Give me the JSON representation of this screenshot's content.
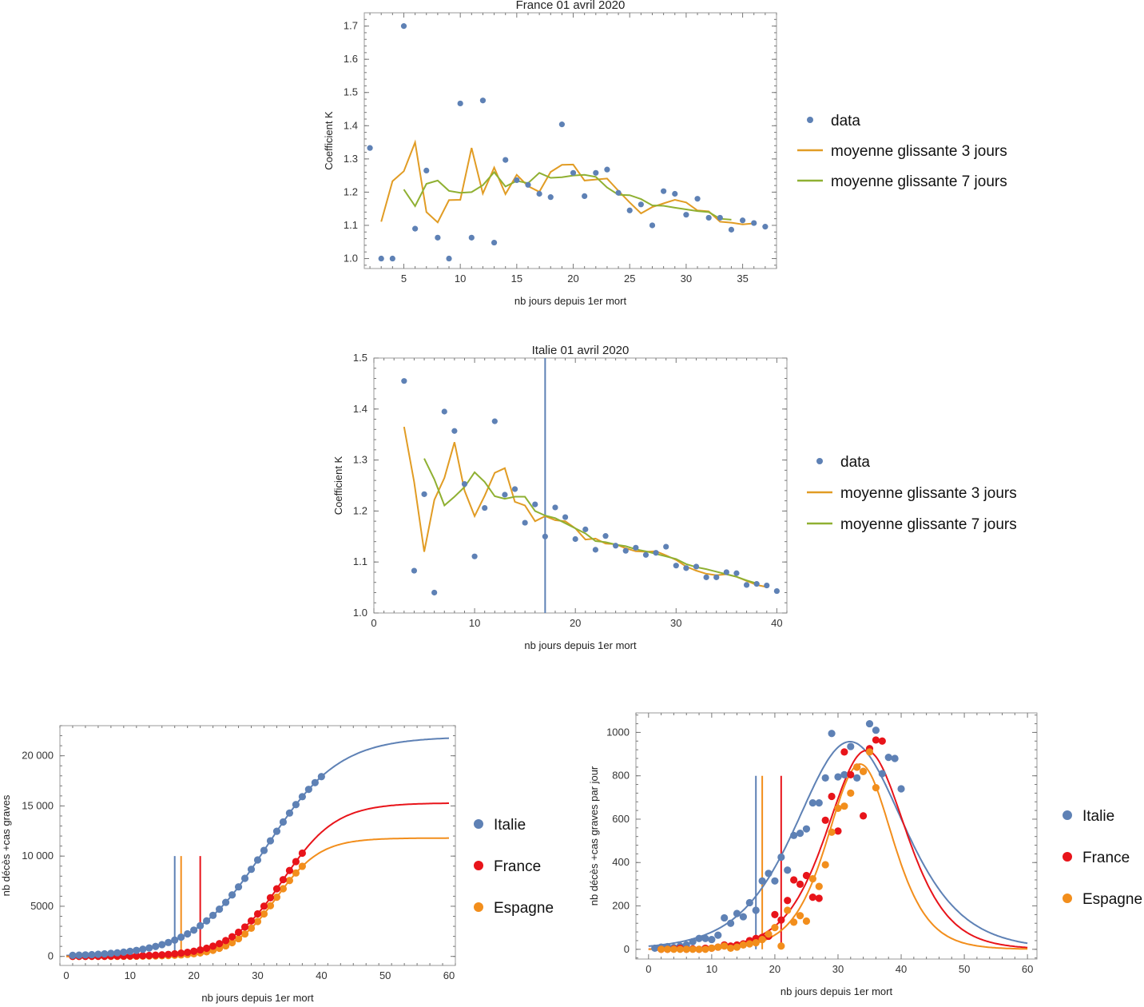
{
  "chart_data": [
    {
      "type": "scatter",
      "title": "France 01 avril 2020",
      "xlabel": "nb jours depuis 1er mort",
      "ylabel": "Coefficient K",
      "xlim": [
        1.5,
        38
      ],
      "ylim": [
        0.97,
        1.74
      ],
      "xticks": [
        5,
        10,
        15,
        20,
        25,
        30,
        35
      ],
      "yticks": [
        1.0,
        1.1,
        1.2,
        1.3,
        1.4,
        1.5,
        1.6,
        1.7
      ],
      "legend_position": "right",
      "series": [
        {
          "name": "data",
          "kind": "points",
          "color": "#5e81b5",
          "x": [
            2,
            3,
            4,
            5,
            6,
            7,
            8,
            9,
            10,
            11,
            12,
            13,
            14,
            15,
            16,
            17,
            18,
            19,
            20,
            21,
            22,
            23,
            24,
            25,
            26,
            27,
            28,
            29,
            30,
            31,
            32,
            33,
            34,
            35,
            36,
            37
          ],
          "y": [
            1.333,
            1.0,
            1.0,
            1.7,
            1.09,
            1.265,
            1.063,
            1.0,
            1.467,
            1.063,
            1.476,
            1.048,
            1.297,
            1.236,
            1.222,
            1.195,
            1.185,
            1.404,
            1.258,
            1.188,
            1.258,
            1.268,
            1.198,
            1.145,
            1.163,
            1.1,
            1.203,
            1.195,
            1.132,
            1.18,
            1.123,
            1.123,
            1.087,
            1.115,
            1.107,
            1.096
          ]
        },
        {
          "name": "moyenne glissante 3 jours",
          "kind": "line",
          "color": "#e19c24",
          "x": [
            3,
            4,
            5,
            6,
            7,
            8,
            9,
            10,
            11,
            12,
            13,
            14,
            15,
            16,
            17,
            18,
            19,
            20,
            21,
            22,
            23,
            24,
            25,
            26,
            27,
            28,
            29,
            30,
            31,
            32,
            33,
            34,
            35,
            36
          ],
          "y": [
            1.111,
            1.233,
            1.263,
            1.35,
            1.14,
            1.109,
            1.176,
            1.177,
            1.333,
            1.196,
            1.274,
            1.194,
            1.252,
            1.218,
            1.201,
            1.261,
            1.282,
            1.283,
            1.235,
            1.238,
            1.241,
            1.204,
            1.169,
            1.136,
            1.155,
            1.166,
            1.177,
            1.169,
            1.145,
            1.142,
            1.111,
            1.108,
            1.103,
            1.106
          ]
        },
        {
          "name": "moyenne glissante 7 jours",
          "kind": "line",
          "color": "#8fb032",
          "x": [
            5,
            6,
            7,
            8,
            9,
            10,
            11,
            12,
            13,
            14,
            15,
            16,
            17,
            18,
            19,
            20,
            21,
            22,
            23,
            24,
            25,
            26,
            27,
            28,
            29,
            30,
            31,
            32,
            33,
            34
          ],
          "y": [
            1.208,
            1.158,
            1.225,
            1.235,
            1.204,
            1.198,
            1.2,
            1.221,
            1.26,
            1.217,
            1.234,
            1.227,
            1.258,
            1.243,
            1.245,
            1.25,
            1.252,
            1.246,
            1.214,
            1.192,
            1.191,
            1.179,
            1.16,
            1.159,
            1.153,
            1.148,
            1.143,
            1.14,
            1.12,
            1.117
          ]
        }
      ]
    },
    {
      "type": "scatter",
      "title": "Italie 01 avril 2020",
      "xlabel": "nb jours depuis 1er mort",
      "ylabel": "Coefficient K",
      "xlim": [
        0,
        41
      ],
      "ylim": [
        1.0,
        1.5
      ],
      "xticks": [
        0,
        10,
        20,
        30,
        40
      ],
      "yticks": [
        1.0,
        1.1,
        1.2,
        1.3,
        1.4,
        1.5
      ],
      "vline_x": 17,
      "legend_position": "right",
      "series": [
        {
          "name": "data",
          "kind": "points",
          "color": "#5e81b5",
          "x": [
            3,
            4,
            5,
            6,
            7,
            8,
            9,
            10,
            11,
            12,
            13,
            14,
            15,
            16,
            17,
            18,
            19,
            20,
            21,
            22,
            23,
            24,
            25,
            26,
            27,
            28,
            29,
            30,
            31,
            32,
            33,
            34,
            35,
            36,
            37,
            38,
            39,
            40
          ],
          "y": [
            1.455,
            1.083,
            1.233,
            1.04,
            1.395,
            1.357,
            1.253,
            1.111,
            1.206,
            1.376,
            1.232,
            1.243,
            1.177,
            1.213,
            1.15,
            1.207,
            1.188,
            1.145,
            1.164,
            1.124,
            1.151,
            1.132,
            1.122,
            1.128,
            1.114,
            1.118,
            1.13,
            1.093,
            1.088,
            1.091,
            1.07,
            1.07,
            1.08,
            1.078,
            1.055,
            1.057,
            1.054,
            1.043
          ]
        },
        {
          "name": "moyenne glissante 3 jours",
          "kind": "line",
          "color": "#e19c24",
          "x": [
            3,
            4,
            5,
            6,
            7,
            8,
            9,
            10,
            11,
            12,
            13,
            14,
            15,
            16,
            17,
            18,
            19,
            20,
            21,
            22,
            23,
            24,
            25,
            26,
            27,
            28,
            29,
            30,
            31,
            32,
            33,
            34,
            35,
            36,
            37,
            38,
            39
          ],
          "y": [
            1.365,
            1.257,
            1.12,
            1.222,
            1.265,
            1.335,
            1.24,
            1.19,
            1.23,
            1.275,
            1.284,
            1.218,
            1.211,
            1.18,
            1.19,
            1.182,
            1.18,
            1.166,
            1.144,
            1.146,
            1.136,
            1.135,
            1.127,
            1.121,
            1.12,
            1.121,
            1.113,
            1.104,
            1.091,
            1.083,
            1.077,
            1.074,
            1.076,
            1.071,
            1.063,
            1.055,
            1.051
          ]
        },
        {
          "name": "moyenne glissante 7 jours",
          "kind": "line",
          "color": "#8fb032",
          "x": [
            5,
            6,
            7,
            8,
            9,
            10,
            11,
            12,
            13,
            14,
            15,
            16,
            17,
            18,
            19,
            20,
            21,
            22,
            23,
            24,
            25,
            26,
            27,
            28,
            29,
            30,
            31,
            32,
            33,
            34,
            35,
            36,
            37,
            38
          ],
          "y": [
            1.303,
            1.262,
            1.211,
            1.228,
            1.247,
            1.276,
            1.257,
            1.229,
            1.224,
            1.228,
            1.228,
            1.2,
            1.191,
            1.186,
            1.176,
            1.166,
            1.156,
            1.141,
            1.139,
            1.134,
            1.131,
            1.125,
            1.121,
            1.116,
            1.111,
            1.106,
            1.096,
            1.09,
            1.086,
            1.081,
            1.076,
            1.071,
            1.064,
            1.058
          ]
        }
      ]
    },
    {
      "type": "scatter",
      "title": "",
      "xlabel": "nb jours depuis 1er mort",
      "ylabel": "nb décès +cas graves",
      "xlim": [
        -1,
        61
      ],
      "ylim": [
        -900,
        23000
      ],
      "xticks": [
        0,
        10,
        20,
        30,
        40,
        50,
        60
      ],
      "ytick_values": [
        0,
        5000,
        10000,
        15000,
        20000
      ],
      "ytick_labels": [
        "0",
        "5000",
        "10 000",
        "15 000",
        "20 000"
      ],
      "vlines": [
        {
          "x": 17,
          "y0": 0,
          "y1": 10000,
          "color": "#5e81b5"
        },
        {
          "x": 18,
          "y0": 0,
          "y1": 10000,
          "color": "#f28e1c"
        },
        {
          "x": 21,
          "y0": 0,
          "y1": 10000,
          "color": "#e8141a"
        }
      ],
      "legend_position": "right",
      "series": [
        {
          "name": "Italie",
          "color": "#5e81b5",
          "points_x_max": 40,
          "curve": {
            "L": 21900,
            "x0": 31.4,
            "k": 0.175
          }
        },
        {
          "name": "France",
          "color": "#e8141a",
          "points_x_max": 37,
          "curve": {
            "L": 15300,
            "x0": 34.0,
            "k": 0.24
          }
        },
        {
          "name": "Espagne",
          "color": "#f28e1c",
          "points_x_max": 37,
          "curve": {
            "L": 11800,
            "x0": 33.0,
            "k": 0.29
          }
        }
      ]
    },
    {
      "type": "scatter",
      "title": "",
      "xlabel": "nb jours depuis 1er mort",
      "ylabel": "nb décès +cas graves par jour",
      "xlim": [
        -2,
        61.5
      ],
      "ylim": [
        -45,
        1090
      ],
      "xticks": [
        0,
        10,
        20,
        30,
        40,
        50,
        60
      ],
      "yticks": [
        0,
        200,
        400,
        600,
        800,
        1000
      ],
      "vlines": [
        {
          "x": 17,
          "y0": 0,
          "y1": 800,
          "color": "#5e81b5"
        },
        {
          "x": 18,
          "y0": 0,
          "y1": 800,
          "color": "#f28e1c"
        },
        {
          "x": 21,
          "y0": 0,
          "y1": 800,
          "color": "#e8141a"
        }
      ],
      "legend_position": "right",
      "series": [
        {
          "name": "Italie",
          "color": "#5e81b5",
          "x": [
            1,
            2,
            3,
            4,
            5,
            6,
            7,
            8,
            9,
            10,
            11,
            12,
            13,
            14,
            15,
            16,
            17,
            18,
            19,
            20,
            21,
            22,
            23,
            24,
            25,
            26,
            27,
            28,
            29,
            30,
            31,
            32,
            33,
            34,
            35,
            36,
            37,
            38,
            39,
            40
          ],
          "y": [
            5,
            10,
            12,
            8,
            15,
            20,
            35,
            50,
            50,
            45,
            65,
            145,
            120,
            165,
            150,
            215,
            180,
            315,
            350,
            315,
            425,
            365,
            525,
            535,
            555,
            675,
            675,
            790,
            995,
            795,
            805,
            935,
            790,
            820,
            1040,
            1010,
            810,
            885,
            880,
            740
          ],
          "curve": {
            "L": 21900,
            "x0": 31.4,
            "k": 0.175
          }
        },
        {
          "name": "France",
          "color": "#e8141a",
          "x": [
            2,
            3,
            4,
            5,
            6,
            7,
            8,
            9,
            10,
            11,
            12,
            13,
            14,
            15,
            16,
            17,
            18,
            19,
            20,
            21,
            22,
            23,
            24,
            25,
            26,
            27,
            28,
            29,
            30,
            31,
            32,
            33,
            34,
            35,
            36,
            37
          ],
          "y": [
            0,
            0,
            2,
            5,
            0,
            2,
            0,
            5,
            5,
            10,
            20,
            15,
            20,
            25,
            40,
            50,
            55,
            60,
            160,
            135,
            225,
            320,
            300,
            340,
            240,
            235,
            595,
            705,
            545,
            910,
            805,
            840,
            615,
            925,
            965,
            960
          ],
          "curve": {
            "L": 15300,
            "x0": 34.0,
            "k": 0.24
          }
        },
        {
          "name": "Espagne",
          "color": "#f28e1c",
          "x": [
            2,
            3,
            4,
            5,
            6,
            7,
            8,
            9,
            10,
            11,
            12,
            13,
            14,
            15,
            16,
            17,
            18,
            19,
            20,
            21,
            22,
            23,
            24,
            25,
            26,
            27,
            28,
            29,
            30,
            31,
            32,
            33,
            34,
            35,
            36
          ],
          "y": [
            0,
            0,
            0,
            0,
            0,
            0,
            0,
            0,
            5,
            10,
            15,
            5,
            10,
            20,
            25,
            30,
            45,
            70,
            100,
            15,
            180,
            125,
            155,
            130,
            325,
            290,
            390,
            540,
            650,
            660,
            720,
            840,
            820,
            910,
            745
          ],
          "curve": {
            "L": 11800,
            "x0": 33.0,
            "k": 0.29
          }
        }
      ]
    }
  ]
}
